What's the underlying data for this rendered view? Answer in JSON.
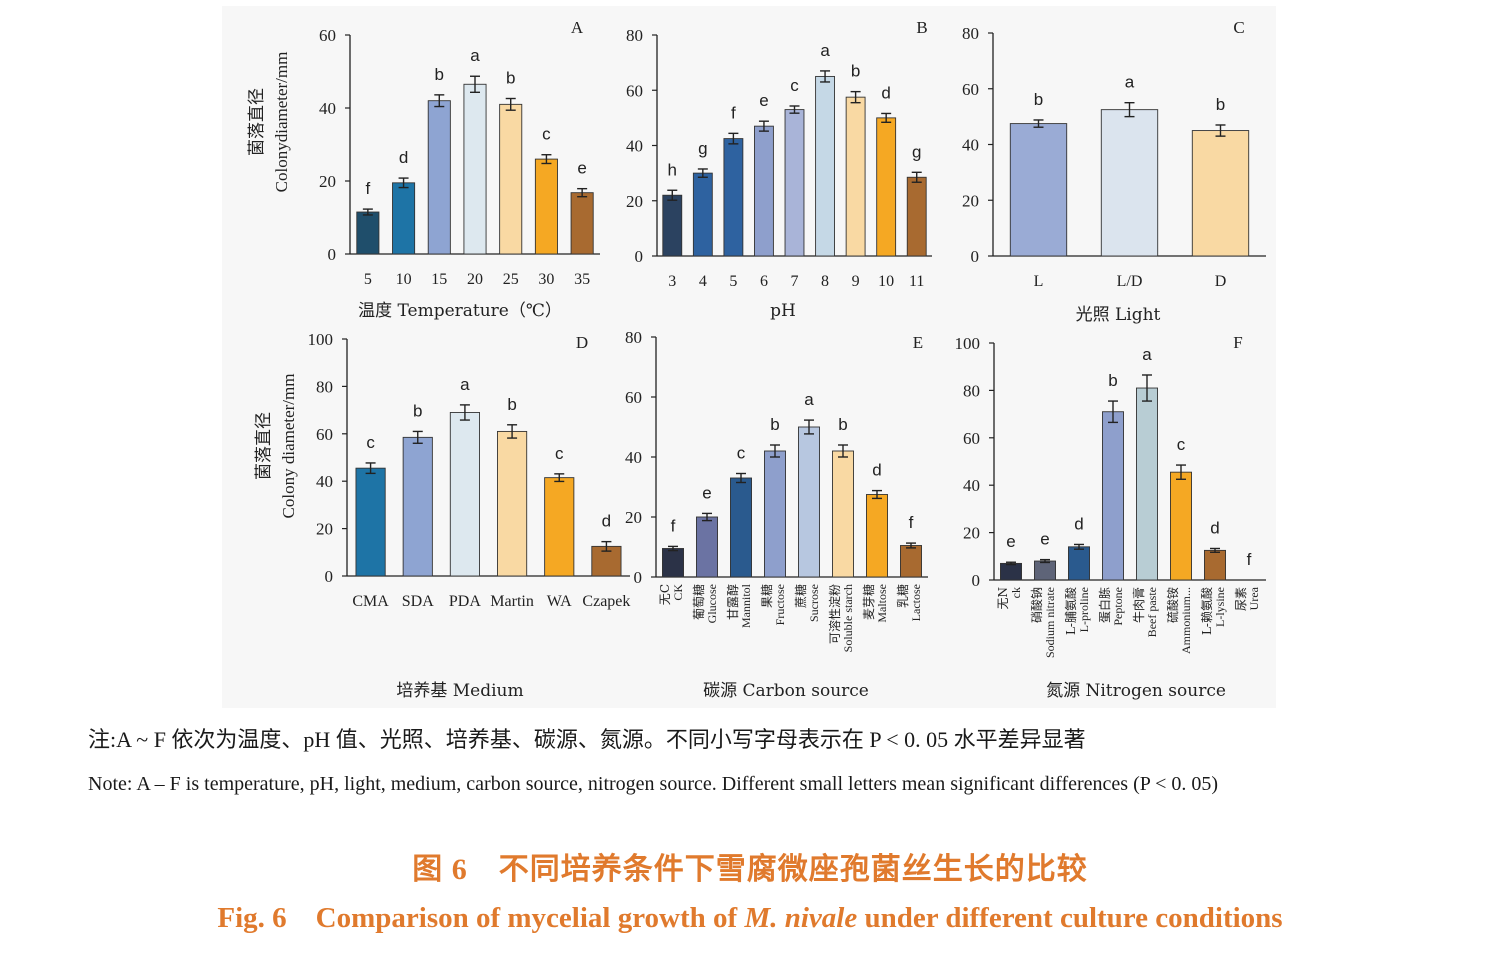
{
  "note_zh": "注:A ~ F 依次为温度、pH 值、光照、培养基、碳源、氮源。不同小写字母表示在 P < 0. 05 水平差异显著",
  "note_en": "Note: A – F is temperature, pH, light, medium, carbon source, nitrogen source. Different small letters mean significant differences (P < 0. 05)",
  "caption_zh": "图 6　不同培养条件下雪腐微座孢菌丝生长的比较",
  "caption_en_prefix": "Fig. 6　Comparison of mycelial growth of ",
  "caption_en_species": "M. nivale",
  "caption_en_suffix": " under different culture conditions",
  "chart_data": [
    {
      "panel": "A",
      "type": "bar",
      "ylabel_zh": "菌落直径",
      "ylabel_en": "Colonydiameter/mm",
      "xlabel": "温度 Temperature（℃）",
      "ylim": [
        0,
        60
      ],
      "yticks": [
        0,
        20,
        40,
        60
      ],
      "categories": [
        {
          "l": "5"
        },
        {
          "l": "10"
        },
        {
          "l": "15"
        },
        {
          "l": "20"
        },
        {
          "l": "25"
        },
        {
          "l": "30"
        },
        {
          "l": "35"
        }
      ],
      "values": [
        11.5,
        19.5,
        42,
        46.5,
        41,
        26,
        16.8
      ],
      "errors": [
        0.8,
        1.3,
        1.6,
        2.2,
        1.6,
        1.2,
        1.1
      ],
      "letters": [
        "f",
        "d",
        "b",
        "a",
        "b",
        "c",
        "e"
      ],
      "colors": [
        "#1f4e6b",
        "#1e74a6",
        "#8ea4d2",
        "#dde8ef",
        "#f9d9a3",
        "#f5a823",
        "#a86a30"
      ]
    },
    {
      "panel": "B",
      "type": "bar",
      "ylabel_zh": "",
      "ylabel_en": "",
      "xlabel": "pH",
      "ylim": [
        0,
        80
      ],
      "yticks": [
        0,
        20,
        40,
        60,
        80
      ],
      "categories": [
        {
          "l": "3"
        },
        {
          "l": "4"
        },
        {
          "l": "5"
        },
        {
          "l": "6"
        },
        {
          "l": "7"
        },
        {
          "l": "8"
        },
        {
          "l": "9"
        },
        {
          "l": "10"
        },
        {
          "l": "11"
        }
      ],
      "values": [
        22,
        30,
        42.5,
        47,
        53,
        65,
        57.5,
        50,
        28.5
      ],
      "errors": [
        1.8,
        1.5,
        1.9,
        1.8,
        1.3,
        2.0,
        2.0,
        1.6,
        1.8
      ],
      "letters": [
        "h",
        "g",
        "f",
        "e",
        "c",
        "a",
        "b",
        "d",
        "g"
      ],
      "colors": [
        "#2b4260",
        "#2e62a0",
        "#2e62a0",
        "#8e9fcc",
        "#a9b4d8",
        "#c5d8e6",
        "#f9d9a3",
        "#f5a823",
        "#a86a30"
      ]
    },
    {
      "panel": "C",
      "type": "bar",
      "ylabel_zh": "",
      "ylabel_en": "",
      "xlabel": "光照 Light",
      "ylim": [
        0,
        80
      ],
      "yticks": [
        0,
        20,
        40,
        60,
        80
      ],
      "categories": [
        {
          "l": "L"
        },
        {
          "l": "L/D"
        },
        {
          "l": "D"
        }
      ],
      "values": [
        47.5,
        52.5,
        45
      ],
      "errors": [
        1.3,
        2.5,
        2.0
      ],
      "letters": [
        "b",
        "a",
        "b"
      ],
      "colors": [
        "#9aabd5",
        "#dbe4ee",
        "#f9d9a3"
      ]
    },
    {
      "panel": "D",
      "type": "bar",
      "ylabel_zh": "菌落直径",
      "ylabel_en": "Colony diameter/mm",
      "xlabel": "培养基  Medium",
      "ylim": [
        0,
        100
      ],
      "yticks": [
        0,
        20,
        40,
        60,
        80,
        100
      ],
      "categories": [
        {
          "l": "CMA"
        },
        {
          "l": "SDA"
        },
        {
          "l": "PDA"
        },
        {
          "l": "Martin"
        },
        {
          "l": "WA"
        },
        {
          "l": "Czapek"
        }
      ],
      "values": [
        45.5,
        58.5,
        69,
        61,
        41.5,
        12.5
      ],
      "errors": [
        2.2,
        2.5,
        3.2,
        2.8,
        1.6,
        2.0
      ],
      "letters": [
        "c",
        "b",
        "a",
        "b",
        "c",
        "d"
      ],
      "colors": [
        "#1e74a6",
        "#8ea4d2",
        "#dde8ef",
        "#f9d9a3",
        "#f5a823",
        "#a86a30"
      ]
    },
    {
      "panel": "E",
      "type": "bar",
      "ylabel_zh": "",
      "ylabel_en": "",
      "xlabel": "碳源 Carbon source",
      "ylim": [
        0,
        80
      ],
      "yticks": [
        0,
        20,
        40,
        60,
        80
      ],
      "categories": [
        {
          "zh": "无C",
          "en": "CK"
        },
        {
          "zh": "葡萄糖",
          "en": "Glucose"
        },
        {
          "zh": "甘露醇",
          "en": "Mannitol"
        },
        {
          "zh": "果糖",
          "en": "Fructose"
        },
        {
          "zh": "蔗糖",
          "en": "Sucrose"
        },
        {
          "zh": "可溶性淀粉",
          "en": "Soluble starch"
        },
        {
          "zh": "麦芽糖",
          "en": "Maltose"
        },
        {
          "zh": "乳糖",
          "en": "Lactose"
        }
      ],
      "values": [
        9.5,
        20,
        33,
        42,
        50,
        42,
        27.5,
        10.5
      ],
      "errors": [
        0.7,
        1.2,
        1.5,
        2.0,
        2.3,
        2.0,
        1.3,
        0.8
      ],
      "letters": [
        "f",
        "e",
        "c",
        "b",
        "a",
        "b",
        "d",
        "f"
      ],
      "colors": [
        "#2b3247",
        "#6b73a3",
        "#2a5a8e",
        "#8e9fcc",
        "#b7c7e0",
        "#f9d9a3",
        "#f5a823",
        "#a86a30"
      ]
    },
    {
      "panel": "F",
      "type": "bar",
      "ylabel_zh": "",
      "ylabel_en": "",
      "xlabel": "氮源 Nitrogen source",
      "ylim": [
        0,
        100
      ],
      "yticks": [
        0,
        20,
        40,
        60,
        80,
        100
      ],
      "categories": [
        {
          "zh": "无N",
          "en": "ck"
        },
        {
          "zh": "硝酸钠",
          "en": "Sodium nitrate"
        },
        {
          "zh": "L-脯氨酸",
          "en": "L-proline"
        },
        {
          "zh": "蛋白胨",
          "en": "Peptone"
        },
        {
          "zh": "牛肉膏",
          "en": "Beef paste"
        },
        {
          "zh": "硫酸铵",
          "en": "Ammonium..."
        },
        {
          "zh": "L-赖氨酸",
          "en": "L-lysine"
        },
        {
          "zh": "尿素",
          "en": "Urea"
        }
      ],
      "values": [
        7,
        8,
        14,
        71,
        81,
        45.5,
        12.5,
        0
      ],
      "errors": [
        0.5,
        0.6,
        1.0,
        4.5,
        5.5,
        3.0,
        0.8,
        0
      ],
      "letters": [
        "e",
        "e",
        "d",
        "b",
        "a",
        "c",
        "d",
        "f"
      ],
      "colors": [
        "#2b3247",
        "#5e6478",
        "#2a5a8e",
        "#8e9fcc",
        "#b8cdd4",
        "#f5a823",
        "#a86a30",
        "#ffffff"
      ]
    }
  ]
}
